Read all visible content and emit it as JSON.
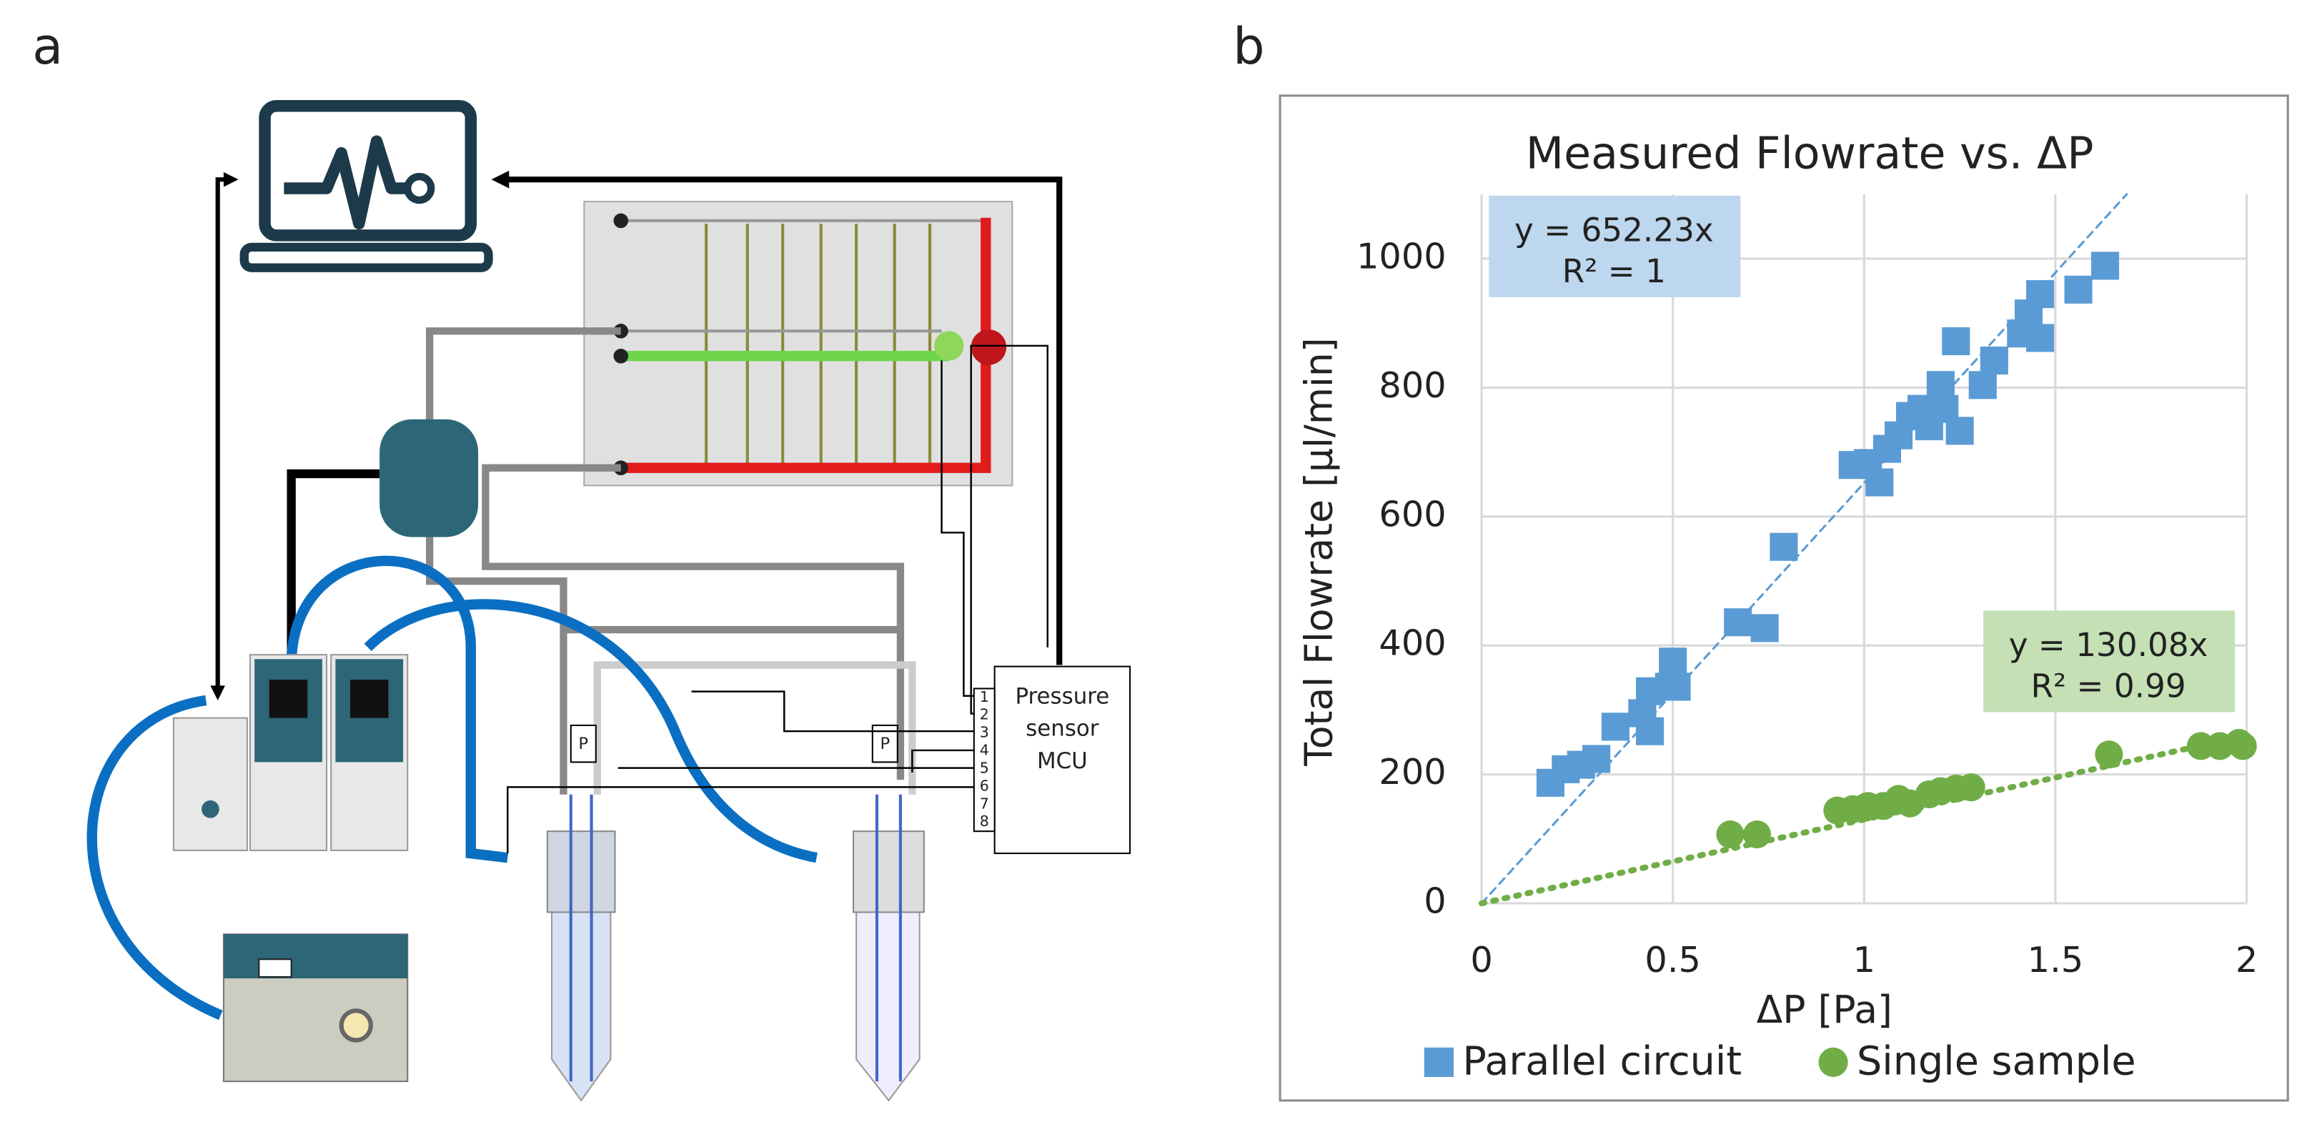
{
  "panel_labels": [
    "a",
    "b"
  ],
  "diagram": {
    "mcu_label": [
      "Pressure",
      "sensor",
      "MCU"
    ],
    "pins": [
      "1",
      "2",
      "3",
      "4",
      "5",
      "6",
      "7",
      "8"
    ],
    "sensor_labels": [
      "P",
      "P"
    ]
  },
  "chart_data": {
    "type": "scatter",
    "title": "Measured Flowrate vs. ΔP",
    "x_label": "ΔP [Pa]",
    "y_label": "Total Flowrate [μl/min]",
    "xlim": [
      0,
      2
    ],
    "xticks": [
      0,
      0.5,
      1,
      1.5,
      2
    ],
    "ylim": [
      0,
      1100
    ],
    "yticks": [
      0,
      200,
      400,
      600,
      800,
      1000
    ],
    "grid": true,
    "legend": "bottom",
    "series": [
      {
        "name": "Parallel circuit",
        "color": "#5b9bd5",
        "marker": "square",
        "x": [
          0.18,
          0.22,
          0.26,
          0.3,
          0.35,
          0.42,
          0.44,
          0.44,
          0.49,
          0.5,
          0.51,
          0.67,
          0.74,
          0.79,
          0.97,
          1.01,
          1.04,
          1.06,
          1.09,
          1.12,
          1.15,
          1.17,
          1.2,
          1.24,
          1.25,
          1.21,
          1.31,
          1.34,
          1.41,
          1.43,
          1.46,
          1.46,
          1.56,
          1.63
        ],
        "values": [
          187,
          208,
          215,
          224,
          274,
          295,
          329,
          267,
          336,
          375,
          336,
          436,
          427,
          553,
          680,
          683,
          653,
          705,
          726,
          756,
          767,
          740,
          804,
          872,
          733,
          767,
          804,
          842,
          884,
          915,
          945,
          877,
          952,
          989
        ],
        "trendline": {
          "slope": 652.23,
          "label": "y = 652.23x",
          "r2_label": "R² = 1",
          "box_color": "#bdd7ee"
        }
      },
      {
        "name": "Single sample",
        "color": "#70ad47",
        "marker": "circle",
        "x": [
          0.65,
          0.72,
          0.93,
          0.97,
          1.0,
          1.01,
          1.05,
          1.09,
          1.12,
          1.17,
          1.2,
          1.24,
          1.28,
          1.64,
          1.88,
          1.93,
          1.98,
          1.99
        ],
        "values": [
          107,
          107,
          144,
          146,
          148,
          151,
          151,
          162,
          155,
          169,
          174,
          178,
          180,
          231,
          244,
          244,
          249,
          244
        ],
        "trendline": {
          "slope": 130.08,
          "label": "y = 130.08x",
          "r2_label": "R² = 0.99",
          "box_color": "#c5e0b4"
        }
      }
    ]
  }
}
